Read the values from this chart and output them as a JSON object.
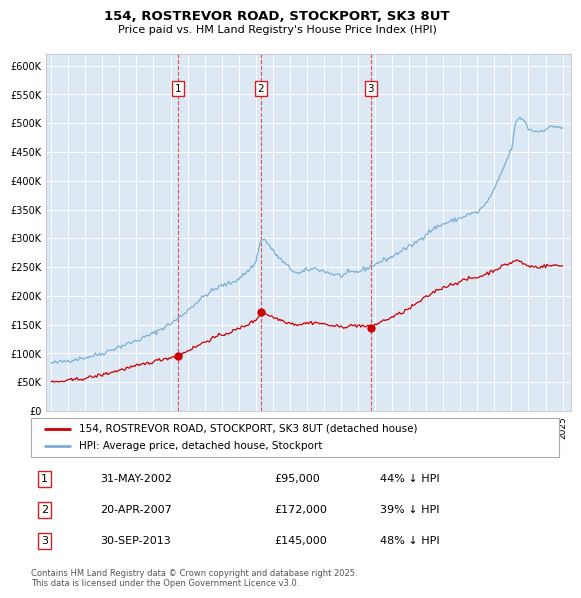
{
  "title": "154, ROSTREVOR ROAD, STOCKPORT, SK3 8UT",
  "subtitle": "Price paid vs. HM Land Registry's House Price Index (HPI)",
  "ylim": [
    0,
    620000
  ],
  "yticks": [
    0,
    50000,
    100000,
    150000,
    200000,
    250000,
    300000,
    350000,
    400000,
    450000,
    500000,
    550000,
    600000
  ],
  "background_color": "#dce9f5",
  "grid_color": "#ffffff",
  "red_line_color": "#cc0000",
  "blue_line_color": "#7ab0d4",
  "purchases": [
    {
      "num": 1,
      "date": "31-MAY-2002",
      "price": 95000,
      "pct": "44%",
      "x_year": 2002.42
    },
    {
      "num": 2,
      "date": "20-APR-2007",
      "price": 172000,
      "pct": "39%",
      "x_year": 2007.3
    },
    {
      "num": 3,
      "date": "30-SEP-2013",
      "price": 145000,
      "pct": "48%",
      "x_year": 2013.75
    }
  ],
  "legend_red": "154, ROSTREVOR ROAD, STOCKPORT, SK3 8UT (detached house)",
  "legend_blue": "HPI: Average price, detached house, Stockport",
  "footer": "Contains HM Land Registry data © Crown copyright and database right 2025.\nThis data is licensed under the Open Government Licence v3.0.",
  "xmin": 1995.0,
  "xmax": 2025.5
}
